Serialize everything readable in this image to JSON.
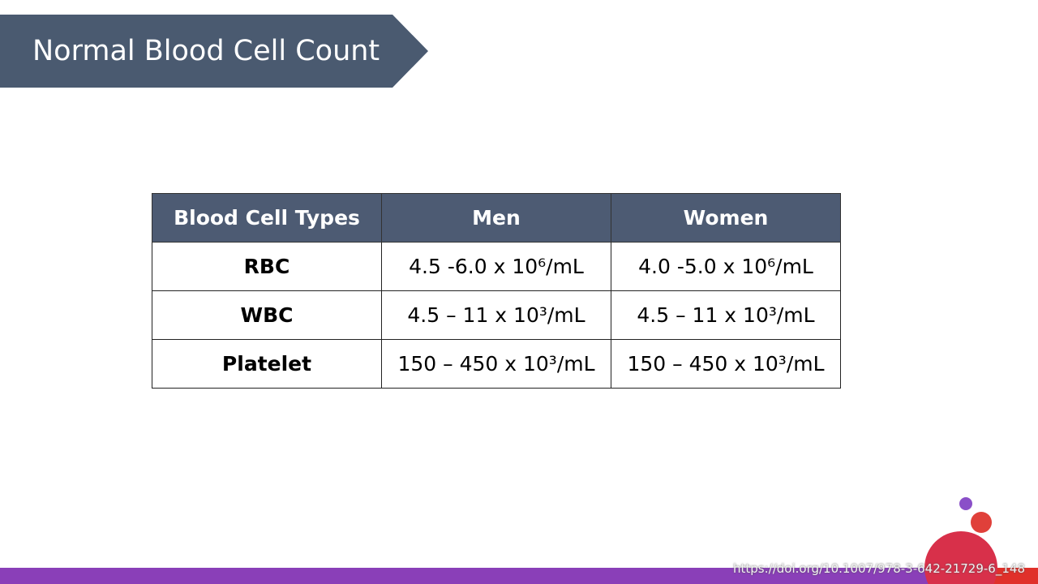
{
  "header": {
    "title": "Normal Blood Cell Count"
  },
  "table": {
    "columns": [
      "Blood Cell Types",
      "Men",
      "Women"
    ],
    "rows": [
      [
        "RBC",
        "4.5 -6.0 x 10⁶/mL",
        "4.0 -5.0 x 10⁶/mL"
      ],
      [
        "WBC",
        "4.5 – 11 x 10³/mL",
        "4.5 – 11 x 10³/mL"
      ],
      [
        "Platelet",
        "150 – 450 x 10³/mL",
        "150 – 450 x 10³/mL"
      ]
    ]
  },
  "footer": {
    "source": "https://doi.org/10.1007/978-3-642-21729-6_148"
  }
}
